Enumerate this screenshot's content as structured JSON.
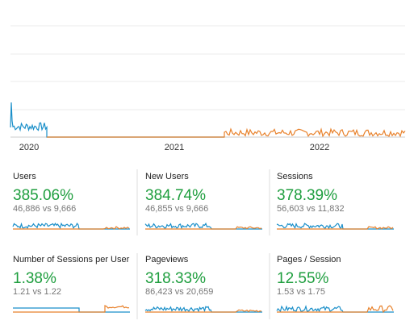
{
  "timeline": {
    "x_labels": [
      "2020",
      "2021",
      "2022"
    ]
  },
  "metrics": [
    {
      "name": "Users",
      "change": "385.06%",
      "detail": "46,886 vs 9,666"
    },
    {
      "name": "New Users",
      "change": "384.74%",
      "detail": "46,855 vs 9,666"
    },
    {
      "name": "Sessions",
      "change": "378.39%",
      "detail": "56,603 vs 11,832"
    },
    {
      "name": "Number of Sessions per User",
      "change": "1.38%",
      "detail": "1.21 vs 1.22"
    },
    {
      "name": "Pageviews",
      "change": "318.33%",
      "detail": "86,423 vs 20,659"
    },
    {
      "name": "Pages / Session",
      "change": "12.55%",
      "detail": "1.53 vs 1.75"
    }
  ]
}
